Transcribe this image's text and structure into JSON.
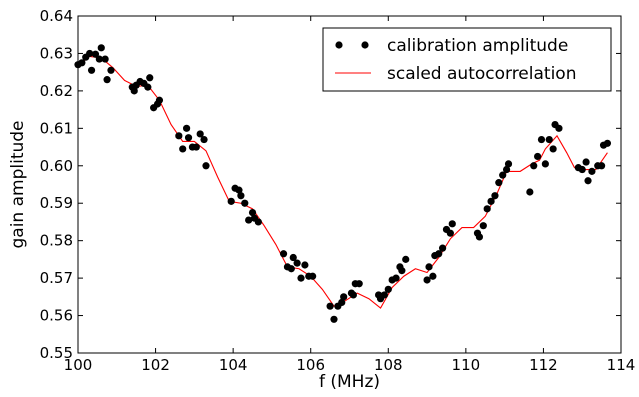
{
  "chart_data": {
    "type": "scatter",
    "xlabel": "f (MHz)",
    "ylabel": "gain amplitude",
    "xlim": [
      100,
      114
    ],
    "ylim": [
      0.55,
      0.64
    ],
    "grid": false,
    "legend_position": "top-right",
    "x_ticks": [
      100,
      102,
      104,
      106,
      108,
      110,
      112,
      114
    ],
    "x_tick_labels": [
      "100",
      "102",
      "104",
      "106",
      "108",
      "110",
      "112",
      "114"
    ],
    "y_ticks": [
      0.55,
      0.56,
      0.57,
      0.58,
      0.59,
      0.6,
      0.61,
      0.62,
      0.63,
      0.64
    ],
    "y_tick_labels": [
      "0.55",
      "0.56",
      "0.57",
      "0.58",
      "0.59",
      "0.60",
      "0.61",
      "0.62",
      "0.63",
      "0.64"
    ],
    "series": [
      {
        "name": "calibration amplitude",
        "style": "markers",
        "color": "#000000",
        "points": [
          [
            100.0,
            0.627
          ],
          [
            100.1,
            0.6275
          ],
          [
            100.2,
            0.629
          ],
          [
            100.3,
            0.63
          ],
          [
            100.35,
            0.6255
          ],
          [
            100.45,
            0.6298
          ],
          [
            100.55,
            0.6285
          ],
          [
            100.6,
            0.6315
          ],
          [
            100.7,
            0.6285
          ],
          [
            100.75,
            0.623
          ],
          [
            100.85,
            0.6255
          ],
          [
            101.4,
            0.621
          ],
          [
            101.45,
            0.62
          ],
          [
            101.5,
            0.6215
          ],
          [
            101.6,
            0.6225
          ],
          [
            101.7,
            0.622
          ],
          [
            101.8,
            0.621
          ],
          [
            101.85,
            0.6235
          ],
          [
            101.95,
            0.6155
          ],
          [
            102.05,
            0.6165
          ],
          [
            102.1,
            0.6175
          ],
          [
            102.6,
            0.608
          ],
          [
            102.7,
            0.6045
          ],
          [
            102.8,
            0.61
          ],
          [
            102.85,
            0.6075
          ],
          [
            102.95,
            0.605
          ],
          [
            103.05,
            0.605
          ],
          [
            103.15,
            0.6085
          ],
          [
            103.25,
            0.607
          ],
          [
            103.3,
            0.6
          ],
          [
            103.95,
            0.5905
          ],
          [
            104.05,
            0.594
          ],
          [
            104.15,
            0.5935
          ],
          [
            104.2,
            0.592
          ],
          [
            104.3,
            0.59
          ],
          [
            104.4,
            0.5855
          ],
          [
            104.5,
            0.5875
          ],
          [
            104.55,
            0.586
          ],
          [
            104.65,
            0.585
          ],
          [
            105.3,
            0.5765
          ],
          [
            105.4,
            0.573
          ],
          [
            105.5,
            0.5725
          ],
          [
            105.55,
            0.5755
          ],
          [
            105.65,
            0.574
          ],
          [
            105.75,
            0.57
          ],
          [
            105.85,
            0.5735
          ],
          [
            105.95,
            0.5705
          ],
          [
            106.05,
            0.5705
          ],
          [
            106.5,
            0.5625
          ],
          [
            106.6,
            0.559
          ],
          [
            106.7,
            0.5625
          ],
          [
            106.8,
            0.5635
          ],
          [
            106.85,
            0.565
          ],
          [
            107.05,
            0.566
          ],
          [
            107.1,
            0.5655
          ],
          [
            107.15,
            0.5685
          ],
          [
            107.25,
            0.5685
          ],
          [
            107.75,
            0.5655
          ],
          [
            107.8,
            0.5645
          ],
          [
            107.9,
            0.5655
          ],
          [
            108.0,
            0.567
          ],
          [
            108.1,
            0.5695
          ],
          [
            108.2,
            0.57
          ],
          [
            108.3,
            0.573
          ],
          [
            108.35,
            0.572
          ],
          [
            108.45,
            0.575
          ],
          [
            109.0,
            0.5695
          ],
          [
            109.05,
            0.573
          ],
          [
            109.15,
            0.5705
          ],
          [
            109.2,
            0.576
          ],
          [
            109.3,
            0.5765
          ],
          [
            109.4,
            0.578
          ],
          [
            109.5,
            0.583
          ],
          [
            109.6,
            0.582
          ],
          [
            109.65,
            0.5845
          ],
          [
            110.3,
            0.582
          ],
          [
            110.35,
            0.581
          ],
          [
            110.45,
            0.584
          ],
          [
            110.55,
            0.5885
          ],
          [
            110.65,
            0.5905
          ],
          [
            110.75,
            0.592
          ],
          [
            110.85,
            0.5955
          ],
          [
            110.95,
            0.5975
          ],
          [
            111.05,
            0.599
          ],
          [
            111.1,
            0.6005
          ],
          [
            111.65,
            0.593
          ],
          [
            111.75,
            0.6
          ],
          [
            111.85,
            0.6025
          ],
          [
            111.95,
            0.607
          ],
          [
            112.05,
            0.6005
          ],
          [
            112.15,
            0.607
          ],
          [
            112.25,
            0.6045
          ],
          [
            112.3,
            0.611
          ],
          [
            112.4,
            0.61
          ],
          [
            112.9,
            0.5995
          ],
          [
            113.0,
            0.599
          ],
          [
            113.1,
            0.601
          ],
          [
            113.15,
            0.596
          ],
          [
            113.25,
            0.5985
          ],
          [
            113.4,
            0.6
          ],
          [
            113.5,
            0.6
          ],
          [
            113.55,
            0.6055
          ],
          [
            113.65,
            0.606
          ]
        ]
      },
      {
        "name": "scaled autocorrelation",
        "style": "line",
        "color": "#ff0000",
        "points": [
          [
            100.0,
            0.6268
          ],
          [
            100.3,
            0.6292
          ],
          [
            100.6,
            0.6288
          ],
          [
            100.9,
            0.6262
          ],
          [
            101.2,
            0.6228
          ],
          [
            101.5,
            0.6212
          ],
          [
            101.8,
            0.6215
          ],
          [
            102.1,
            0.6175
          ],
          [
            102.4,
            0.611
          ],
          [
            102.7,
            0.6065
          ],
          [
            103.0,
            0.6065
          ],
          [
            103.3,
            0.604
          ],
          [
            103.6,
            0.597
          ],
          [
            103.9,
            0.5905
          ],
          [
            104.2,
            0.59
          ],
          [
            104.5,
            0.5885
          ],
          [
            104.8,
            0.584
          ],
          [
            105.1,
            0.579
          ],
          [
            105.4,
            0.573
          ],
          [
            105.7,
            0.5725
          ],
          [
            106.0,
            0.5705
          ],
          [
            106.3,
            0.567
          ],
          [
            106.6,
            0.5625
          ],
          [
            106.9,
            0.564
          ],
          [
            107.2,
            0.566
          ],
          [
            107.5,
            0.5645
          ],
          [
            107.8,
            0.562
          ],
          [
            108.1,
            0.5675
          ],
          [
            108.4,
            0.5705
          ],
          [
            108.7,
            0.5725
          ],
          [
            109.0,
            0.5715
          ],
          [
            109.3,
            0.5755
          ],
          [
            109.6,
            0.5805
          ],
          [
            109.9,
            0.5835
          ],
          [
            110.2,
            0.5835
          ],
          [
            110.5,
            0.5865
          ],
          [
            110.8,
            0.5925
          ],
          [
            111.05,
            0.5985
          ],
          [
            111.4,
            0.5985
          ],
          [
            111.7,
            0.6005
          ],
          [
            111.9,
            0.6015
          ],
          [
            112.05,
            0.6045
          ],
          [
            112.35,
            0.608
          ],
          [
            112.6,
            0.6035
          ],
          [
            112.8,
            0.5995
          ],
          [
            113.1,
            0.599
          ],
          [
            113.35,
            0.599
          ],
          [
            113.65,
            0.6035
          ]
        ]
      }
    ]
  }
}
